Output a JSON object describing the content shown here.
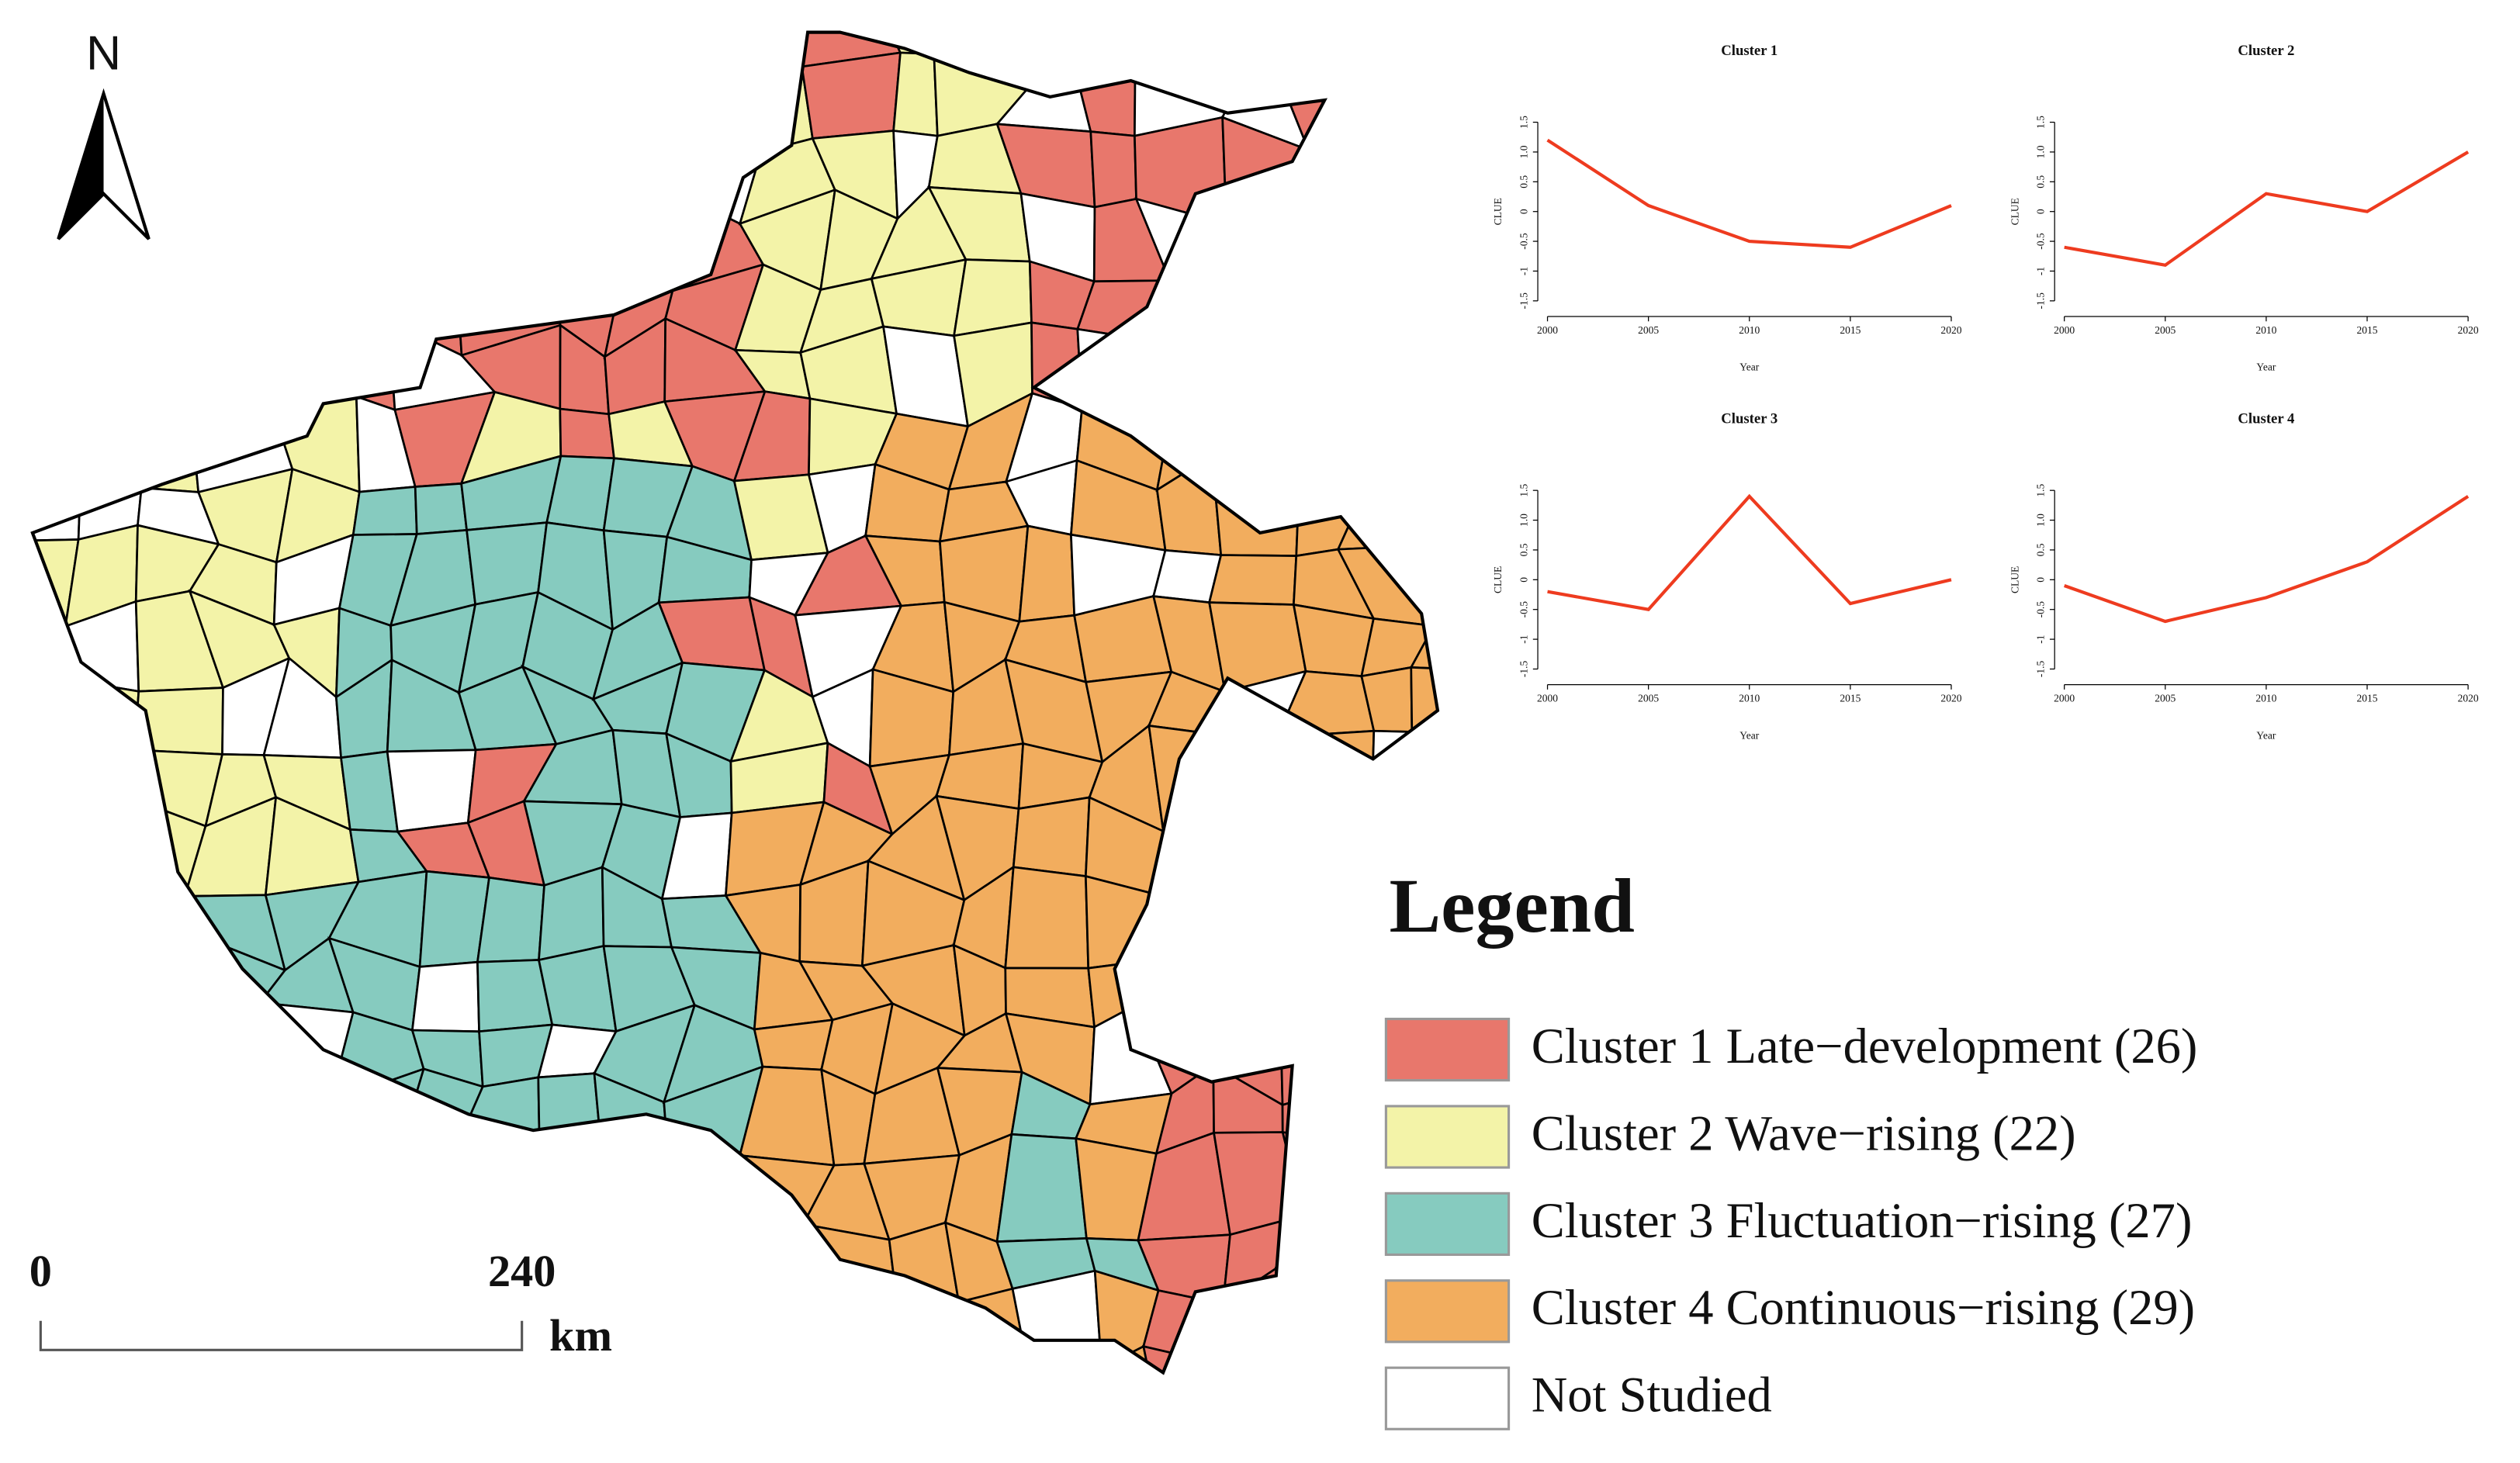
{
  "map": {
    "north": "N",
    "scale": {
      "start": "0",
      "end": "240",
      "unit": "km"
    },
    "legend": {
      "title": "Legend",
      "items": [
        {
          "label": "Cluster 1 Late−development (26)",
          "color": "#e8776c"
        },
        {
          "label": "Cluster 2 Wave−rising (22)",
          "color": "#f3f3a8"
        },
        {
          "label": "Cluster 3 Fluctuation−rising (27)",
          "color": "#86cbbf"
        },
        {
          "label": "Cluster 4 Continuous−rising (29)",
          "color": "#f2ad5e"
        },
        {
          "label": "Not Studied",
          "color": "#ffffff"
        }
      ]
    }
  },
  "chart_data": [
    {
      "type": "line",
      "title": "Cluster 1",
      "xlabel": "Year",
      "ylabel": "CLUE",
      "x": [
        2000,
        2005,
        2010,
        2015,
        2020
      ],
      "series": [
        {
          "color": "#ee3b1f",
          "values": [
            1.2,
            0.1,
            -0.5,
            -0.6,
            0.1
          ]
        }
      ],
      "xlim": [
        2000,
        2020
      ],
      "ylim": [
        -1.6,
        1.6
      ],
      "xticks": [
        2000,
        2005,
        2010,
        2015,
        2020
      ],
      "yticks": [
        -1.5,
        -1,
        -0.5,
        0,
        0.5,
        {
          "value": 1,
          "label": "1.0"
        },
        1.5
      ]
    },
    {
      "type": "line",
      "title": "Cluster 2",
      "xlabel": "Year",
      "ylabel": "CLUE",
      "x": [
        2000,
        2005,
        2010,
        2015,
        2020
      ],
      "series": [
        {
          "color": "#ee3b1f",
          "values": [
            -0.6,
            -0.9,
            0.3,
            0.0,
            1.0
          ]
        }
      ],
      "xlim": [
        2000,
        2020
      ],
      "ylim": [
        -1.6,
        1.6
      ],
      "xticks": [
        2000,
        2005,
        2010,
        2015,
        2020
      ],
      "yticks": [
        -1.5,
        -1,
        -0.5,
        0,
        0.5,
        {
          "value": 1,
          "label": "1.0"
        },
        1.5
      ]
    },
    {
      "type": "line",
      "title": "Cluster 3",
      "xlabel": "Year",
      "ylabel": "CLUE",
      "x": [
        2000,
        2005,
        2010,
        2015,
        2020
      ],
      "series": [
        {
          "color": "#ee3b1f",
          "values": [
            -0.2,
            -0.5,
            1.4,
            -0.4,
            0.0
          ]
        }
      ],
      "xlim": [
        2000,
        2020
      ],
      "ylim": [
        -1.6,
        1.6
      ],
      "xticks": [
        2000,
        2005,
        2010,
        2015,
        2020
      ],
      "yticks": [
        -1.5,
        -1,
        -0.5,
        0,
        0.5,
        {
          "value": 1,
          "label": "1.0"
        },
        1.5
      ]
    },
    {
      "type": "line",
      "title": "Cluster 4",
      "xlabel": "Year",
      "ylabel": "CLUE",
      "x": [
        2000,
        2005,
        2010,
        2015,
        2020
      ],
      "series": [
        {
          "color": "#ee3b1f",
          "values": [
            -0.1,
            -0.7,
            -0.3,
            0.3,
            1.4
          ]
        }
      ],
      "xlim": [
        2000,
        2020
      ],
      "ylim": [
        -1.6,
        1.6
      ],
      "xticks": [
        2000,
        2005,
        2010,
        2015,
        2020
      ],
      "yticks": [
        -1.5,
        -1,
        -0.5,
        0,
        0.5,
        {
          "value": 1,
          "label": "1.0"
        },
        1.5
      ]
    }
  ]
}
